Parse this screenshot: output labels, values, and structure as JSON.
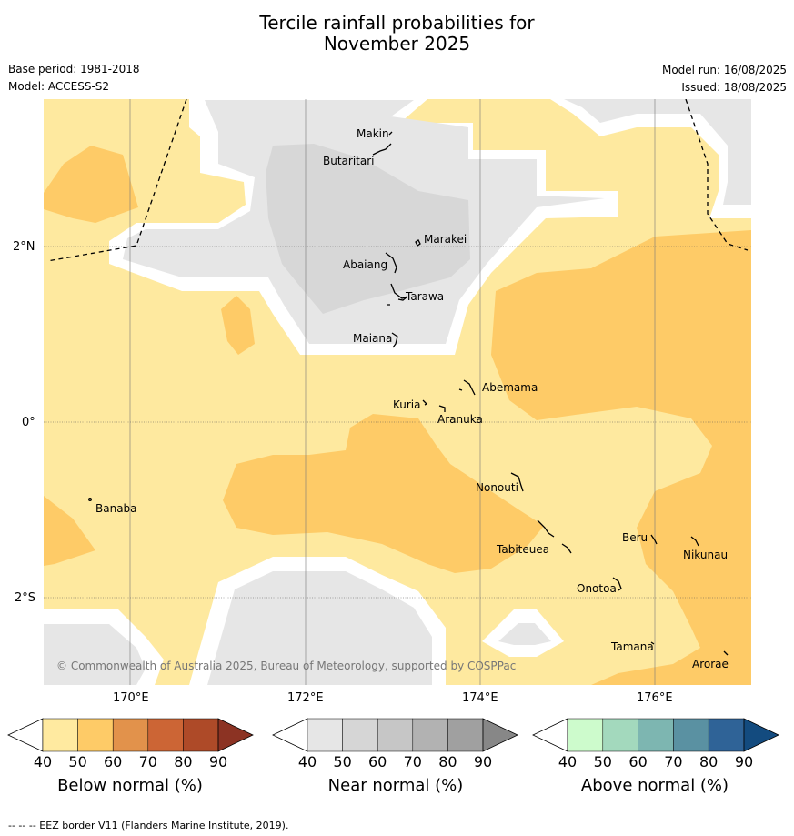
{
  "title_line1": "Tercile rainfall probabilities for",
  "title_line2": "November 2025",
  "base_period": "Base period: 1981-2018",
  "model": "Model: ACCESS-S2",
  "model_run": "Model run: 16/08/2025",
  "issued": "Issued: 18/08/2025",
  "copyright": "© Commonwealth of Australia 2025, Bureau of Meteorology, supported by COSPPac",
  "footer": "-- -- -- EEZ border V11 (Flanders Marine Institute, 2019).",
  "lat_ticks": [
    "2°N",
    "0°",
    "2°S"
  ],
  "lon_ticks": [
    "170°E",
    "172°E",
    "174°E",
    "176°E"
  ],
  "places": {
    "makin": "Makin",
    "butaritari": "Butaritari",
    "marakei": "Marakei",
    "abaiang": "Abaiang",
    "tarawa": "Tarawa",
    "maiana": "Maiana",
    "abemama": "Abemama",
    "kuria": "Kuria",
    "aranuka": "Aranuka",
    "banaba": "Banaba",
    "nonouti": "Nonouti",
    "tabiteuea": "Tabiteuea",
    "beru": "Beru",
    "nikunau": "Nikunau",
    "onotoa": "Onotoa",
    "tamana": "Tamana",
    "arorae": "Arorae"
  },
  "colorbars": {
    "below": {
      "label": "Below normal (%)",
      "ticks": [
        "40",
        "50",
        "60",
        "70",
        "80",
        "90"
      ],
      "colors": [
        "#ffeaa0",
        "#fecb67",
        "#e2924b",
        "#cc6535",
        "#ae4a28",
        "#8c3323"
      ]
    },
    "near": {
      "label": "Near normal (%)",
      "ticks": [
        "40",
        "50",
        "60",
        "70",
        "80",
        "90"
      ],
      "colors": [
        "#e6e6e6",
        "#d6d6d6",
        "#c6c6c6",
        "#b2b2b2",
        "#a0a0a0",
        "#878787"
      ]
    },
    "above": {
      "label": "Above normal (%)",
      "ticks": [
        "40",
        "50",
        "60",
        "70",
        "80",
        "90"
      ],
      "colors": [
        "#cdfbcc",
        "#a3d9bd",
        "#7db6b1",
        "#5a91a2",
        "#2f6397",
        "#134b7f"
      ]
    }
  },
  "map_colors": {
    "below_40_50": "#fee99f",
    "below_50_60": "#fecb67",
    "near_40_50": "#e6e6e6",
    "near_50_60": "#d7d7d7",
    "white": "#ffffff"
  }
}
